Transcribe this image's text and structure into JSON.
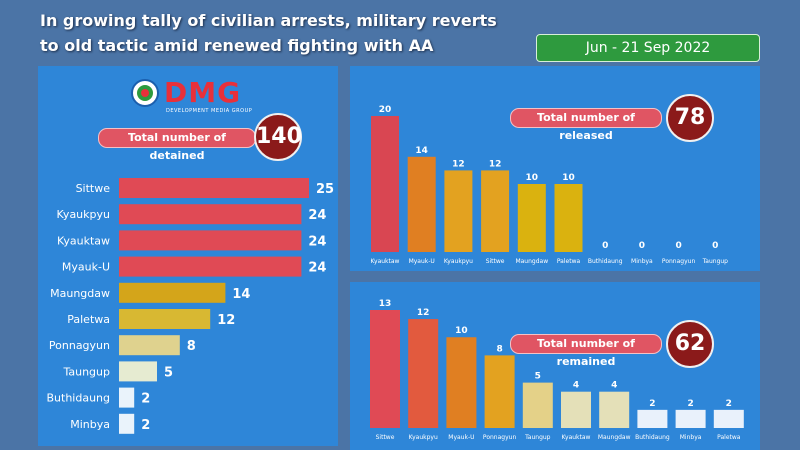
{
  "header": {
    "title_line1": "In growing tally of civilian arrests, military reverts",
    "title_line2": "to old tactic amid renewed fighting with AA",
    "date_range": "Jun - 21 Sep 2022"
  },
  "logo": {
    "text": "DMG",
    "subtitle": "DEVELOPMENT MEDIA GROUP"
  },
  "chart_data": [
    {
      "type": "bar",
      "orientation": "horizontal",
      "title": "Total number of detained",
      "total": "140",
      "categories": [
        "Sittwe",
        "Kyaukpyu",
        "Kyauktaw",
        "Myauk-U",
        "Maungdaw",
        "Paletwa",
        "Ponnagyun",
        "Taungup",
        "Buthidaung",
        "Minbya"
      ],
      "values": [
        25,
        24,
        24,
        24,
        14,
        12,
        8,
        5,
        2,
        2
      ],
      "colors": [
        "#e04a55",
        "#e04a55",
        "#e04a55",
        "#e04a55",
        "#d4a51a",
        "#d8b832",
        "#dfd28e",
        "#e6ebd1",
        "#eaf3fb",
        "#eaf3fb"
      ]
    },
    {
      "type": "bar",
      "title": "Total number of released",
      "total": "78",
      "categories": [
        "Kyauktaw",
        "Myauk-U",
        "Kyaukpyu",
        "Sittwe",
        "Maungdaw",
        "Paletwa",
        "Buthidaung",
        "Minbya",
        "Ponnagyun",
        "Taungup"
      ],
      "values": [
        20,
        14,
        12,
        12,
        10,
        10,
        0,
        0,
        0,
        0
      ],
      "colors": [
        "#d94652",
        "#e07f22",
        "#e3a220",
        "#e3a220",
        "#dab20f",
        "#dab20f",
        "#dab20f",
        "#dab20f",
        "#dab20f",
        "#dab20f"
      ]
    },
    {
      "type": "bar",
      "title": "Total number of remained",
      "total": "62",
      "categories": [
        "Sittwe",
        "Kyaukpyu",
        "Myauk-U",
        "Ponnagyun",
        "Taungup",
        "Kyauktaw",
        "Maungdaw",
        "Buthidaung",
        "Minbya",
        "Paletwa"
      ],
      "values": [
        13,
        12,
        10,
        8,
        5,
        4,
        4,
        2,
        2,
        2
      ],
      "colors": [
        "#e04a55",
        "#e25a3e",
        "#e07f22",
        "#e3a220",
        "#e4d188",
        "#e4e0b8",
        "#e4e0b8",
        "#e9f1fb",
        "#e9f1fb",
        "#e9f1fb"
      ]
    }
  ]
}
